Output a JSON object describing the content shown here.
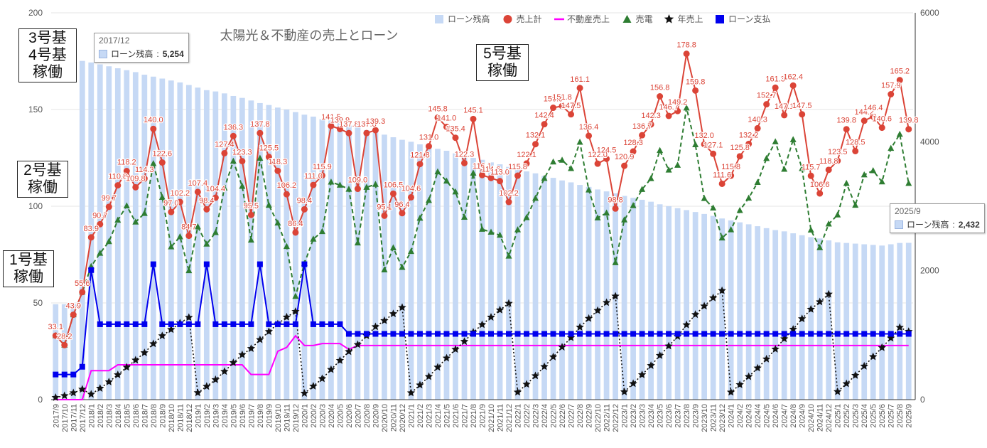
{
  "chart_data": {
    "type": "combo",
    "title": "太陽光＆不動産の売上とローン",
    "x": [
      "2017/9",
      "2017/10",
      "2017/11",
      "2017/12",
      "2018/1",
      "2018/2",
      "2018/3",
      "2018/4",
      "2018/5",
      "2018/6",
      "2018/7",
      "2018/8",
      "2018/9",
      "2018/10",
      "2018/11",
      "2018/12",
      "2019/1",
      "2019/2",
      "2019/3",
      "2019/4",
      "2019/5",
      "2019/6",
      "2019/7",
      "2019/8",
      "2019/9",
      "2019/10",
      "2019/11",
      "2019/12",
      "2020/1",
      "2020/2",
      "2020/3",
      "2020/4",
      "2020/5",
      "2020/6",
      "2020/7",
      "2020/8",
      "2020/9",
      "2020/10",
      "2020/11",
      "2020/12",
      "2021/1",
      "2021/2",
      "2021/3",
      "2021/4",
      "2021/5",
      "2021/6",
      "2021/7",
      "2021/8",
      "2021/9",
      "2021/10",
      "2021/11",
      "2021/12",
      "2022/1",
      "2022/2",
      "2022/3",
      "2022/4",
      "2022/5",
      "2022/6",
      "2022/7",
      "2022/8",
      "2022/9",
      "2022/10",
      "2022/11",
      "2022/12",
      "2023/1",
      "2023/2",
      "2023/3",
      "2023/4",
      "2023/5",
      "2023/6",
      "2023/7",
      "2023/8",
      "2023/9",
      "2023/10",
      "2023/11",
      "2023/12",
      "2024/1",
      "2024/2",
      "2024/3",
      "2024/4",
      "2024/5",
      "2024/6",
      "2024/7",
      "2024/8",
      "2024/9",
      "2024/10",
      "2024/11",
      "2024/12",
      "2025/1",
      "2025/2",
      "2025/3",
      "2025/4",
      "2025/5",
      "2025/6",
      "2025/7",
      "2025/8",
      "2025/9"
    ],
    "y_left": {
      "min": 0,
      "max": 200,
      "ticks": [
        0,
        50,
        100,
        150,
        200
      ]
    },
    "y_right": {
      "min": 0,
      "max": 6000,
      "ticks": [
        0,
        2000,
        4000,
        6000
      ]
    },
    "legend": [
      "ローン残高",
      "売上計",
      "不動産売上",
      "売電",
      "年売上",
      "ローン支払"
    ],
    "colors": {
      "loan_balance": "#c6d9f5",
      "sales_total": "#db4437",
      "real_estate": "#ff00ff",
      "power": "#2e7d32",
      "annual": "#111111",
      "loan_payment": "#0000ee"
    },
    "series": [
      {
        "name": "ローン残高",
        "axis": "right",
        "type": "bar",
        "values": [
          1480,
          1480,
          1480,
          5254,
          5230,
          5200,
          5170,
          5140,
          5110,
          5080,
          5040,
          5010,
          4980,
          4950,
          4920,
          4880,
          4840,
          4800,
          4780,
          4750,
          4710,
          4680,
          4640,
          4600,
          4570,
          4530,
          4500,
          4460,
          4420,
          4390,
          4350,
          4330,
          4290,
          4250,
          4220,
          4180,
          4140,
          4110,
          4070,
          4030,
          4000,
          3960,
          3920,
          3890,
          3860,
          3820,
          3790,
          3750,
          3720,
          3680,
          3650,
          3610,
          3580,
          3540,
          3510,
          3470,
          3440,
          3400,
          3370,
          3330,
          3300,
          3260,
          3230,
          3200,
          3160,
          3130,
          3100,
          3070,
          3030,
          3000,
          2970,
          2940,
          2910,
          2880,
          2850,
          2810,
          2780,
          2750,
          2720,
          2690,
          2660,
          2630,
          2610,
          2580,
          2550,
          2520,
          2500,
          2470,
          2440,
          2430,
          2420,
          2410,
          2400,
          2390,
          2410,
          2430,
          2432
        ]
      },
      {
        "name": "売上計",
        "axis": "left",
        "type": "line",
        "values": [
          33.1,
          28.2,
          43.9,
          55.6,
          83.9,
          90.7,
          99.7,
          110.8,
          118.2,
          109.8,
          114.3,
          140.0,
          122.6,
          97.0,
          102.2,
          84.7,
          107.4,
          98.4,
          104.4,
          127.4,
          136.3,
          123.3,
          95.5,
          137.8,
          125.5,
          118.3,
          106.2,
          86.4,
          98.4,
          111.0,
          115.9,
          141.5,
          139.9,
          137.8,
          109.0,
          137.8,
          139.3,
          95.1,
          106.5,
          96.4,
          104.6,
          121.8,
          131.0,
          145.8,
          141.0,
          135.4,
          122.3,
          145.1,
          116.1,
          114.6,
          113.0,
          102.2,
          115.8,
          122.1,
          132.1,
          142.4,
          150.9,
          151.8,
          147.5,
          161.1,
          136.4,
          122.0,
          124.5,
          98.8,
          120.9,
          128.3,
          136.7,
          142.3,
          156.8,
          146.7,
          149.2,
          178.8,
          159.8,
          132.0,
          127.1,
          111.6,
          115.8,
          125.8,
          132.2,
          140.3,
          152.7,
          161.3,
          147.1,
          162.4,
          147.5,
          115.7,
          106.6,
          118.8,
          123.5,
          139.8,
          128.5,
          144.2,
          146.4,
          140.6,
          157.9,
          165.2,
          139.8
        ]
      },
      {
        "name": "不動産売上",
        "axis": "left",
        "type": "line",
        "values": [
          0,
          0,
          0,
          0,
          15,
          15,
          15,
          18,
          18,
          18,
          18,
          18,
          18,
          18,
          18,
          18,
          18,
          18,
          18,
          18,
          18,
          18,
          13,
          13,
          13,
          25,
          27,
          33,
          28,
          28,
          29,
          29,
          29,
          26,
          28,
          28,
          28,
          28,
          28,
          28,
          28,
          28,
          28,
          28,
          28,
          28,
          28,
          28,
          28,
          28,
          28,
          28,
          28,
          28,
          28,
          28,
          28,
          28,
          28,
          28,
          28,
          28,
          28,
          28,
          28,
          28,
          28,
          28,
          28,
          28,
          28,
          28,
          28,
          28,
          28,
          28,
          28,
          28,
          28,
          28,
          28,
          28,
          28,
          28,
          28,
          28,
          28,
          28,
          28,
          28,
          28,
          28,
          28,
          28,
          28,
          28,
          28
        ]
      },
      {
        "name": "売電",
        "axis": "left",
        "type": "line",
        "values": [
          33.1,
          28.2,
          43.9,
          55.6,
          68.9,
          75.7,
          81.7,
          92.8,
          100.2,
          91.8,
          96.3,
          122.0,
          104.6,
          79.0,
          84.2,
          66.7,
          89.4,
          80.4,
          86.4,
          109.4,
          123.3,
          110.3,
          82.5,
          124.8,
          100.5,
          91.3,
          79.2,
          53.4,
          70.4,
          83.0,
          86.9,
          112.5,
          110.9,
          108.8,
          81.0,
          109.8,
          111.3,
          67.1,
          78.5,
          68.4,
          76.6,
          93.8,
          103.0,
          117.8,
          113.0,
          107.4,
          94.3,
          117.1,
          88.1,
          86.6,
          85.0,
          74.2,
          87.8,
          94.1,
          104.1,
          114.4,
          122.9,
          123.8,
          119.5,
          133.1,
          108.4,
          94.0,
          96.5,
          70.8,
          92.9,
          100.3,
          108.7,
          114.3,
          128.8,
          118.7,
          121.2,
          150.8,
          131.8,
          104.0,
          99.1,
          83.6,
          87.8,
          97.8,
          104.2,
          112.3,
          124.7,
          133.3,
          119.1,
          134.4,
          119.5,
          87.7,
          78.6,
          90.8,
          95.5,
          111.8,
          100.5,
          116.2,
          118.4,
          112.6,
          129.9,
          137.2,
          111.8
        ]
      },
      {
        "name": "年売上",
        "axis": "right",
        "type": "line",
        "values": [
          33,
          61,
          105,
          161,
          84,
          175,
          275,
          385,
          503,
          613,
          727,
          867,
          990,
          1087,
          1189,
          1274,
          107,
          206,
          310,
          437,
          574,
          697,
          792,
          930,
          1056,
          1174,
          1280,
          1367,
          98,
          209,
          325,
          467,
          607,
          745,
          854,
          991,
          1131,
          1226,
          1332,
          1429,
          105,
          227,
          358,
          503,
          644,
          780,
          902,
          1047,
          1163,
          1278,
          1391,
          1493,
          116,
          238,
          370,
          512,
          663,
          815,
          962,
          1123,
          1260,
          1382,
          1506,
          1605,
          121,
          249,
          386,
          528,
          685,
          832,
          981,
          1160,
          1320,
          1452,
          1579,
          1691,
          116,
          232,
          357,
          490,
          630,
          783,
          944,
          1091,
          1254,
          1401,
          1517,
          1636,
          124,
          247,
          376,
          520,
          666,
          807,
          955,
          1120,
          1057
        ]
      },
      {
        "name": "ローン支払",
        "axis": "left",
        "type": "line",
        "values": [
          13,
          13,
          13,
          17,
          67,
          39,
          39,
          39,
          39,
          39,
          39,
          70,
          39,
          39,
          39,
          39,
          39,
          70,
          39,
          39,
          39,
          39,
          39,
          70,
          39,
          39,
          39,
          39,
          70,
          39,
          39,
          39,
          39,
          34,
          34,
          34,
          34,
          34,
          34,
          34,
          34,
          34,
          34,
          34,
          34,
          34,
          34,
          34,
          34,
          34,
          34,
          34,
          34,
          34,
          34,
          34,
          34,
          34,
          34,
          34,
          34,
          34,
          34,
          34,
          34,
          34,
          34,
          34,
          34,
          34,
          34,
          34,
          34,
          34,
          34,
          34,
          34,
          34,
          34,
          34,
          34,
          34,
          34,
          34,
          34,
          34,
          34,
          34,
          34,
          34,
          34,
          34,
          34,
          34,
          34,
          34,
          34
        ]
      }
    ],
    "annotations": [
      {
        "text": "1号基\n稼働",
        "x": "2017/9"
      },
      {
        "text": "2号基\n稼働",
        "x": "2017/11"
      },
      {
        "text": "3号基\n4号基\n稼働",
        "x": "2017/12"
      },
      {
        "text": "5号基\n稼働",
        "x": "2022/8"
      }
    ],
    "tooltips": [
      {
        "title": "2017/12",
        "label": "ローン残高",
        "value": "5,254"
      },
      {
        "title": "2025/9",
        "label": "ローン残高",
        "value": "2,432"
      }
    ]
  }
}
